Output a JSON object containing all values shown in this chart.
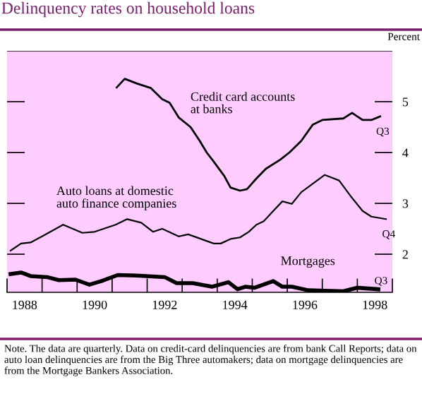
{
  "chart_data": {
    "type": "line",
    "title": "Delinquency rates on household loans",
    "ylabel": "Percent",
    "series": [
      {
        "name": "Credit card accounts\nat banks",
        "color": "#000000",
        "x": [
          1991.13,
          1991.36,
          1991.7,
          1992.1,
          1992.43,
          1992.64,
          1992.9,
          1993.24,
          1993.5,
          1993.7,
          1993.9,
          1994.2,
          1994.38,
          1994.65,
          1994.85,
          1995.12,
          1995.39,
          1995.8,
          1996.06,
          1996.4,
          1996.73,
          1997.0,
          1997.6,
          1997.85,
          1998.15,
          1998.4,
          1998.65
        ],
        "values": [
          5.28,
          5.45,
          5.36,
          5.27,
          5.05,
          4.98,
          4.69,
          4.5,
          4.23,
          4.0,
          3.82,
          3.54,
          3.31,
          3.25,
          3.28,
          3.49,
          3.68,
          3.86,
          4.0,
          4.23,
          4.55,
          4.64,
          4.67,
          4.78,
          4.64,
          4.64,
          4.71
        ]
      },
      {
        "name": "Auto loans at domestic\nauto finance companies",
        "color": "#000000",
        "x": [
          1988.1,
          1988.4,
          1988.67,
          1989.0,
          1989.6,
          1990.15,
          1990.5,
          1991.1,
          1991.43,
          1991.83,
          1992.17,
          1992.43,
          1992.9,
          1993.17,
          1993.9,
          1994.1,
          1994.38,
          1994.65,
          1994.9,
          1995.12,
          1995.33,
          1995.6,
          1995.86,
          1996.13,
          1996.4,
          1997.07,
          1997.48,
          1997.8,
          1998.15,
          1998.4,
          1998.82
        ],
        "values": [
          2.07,
          2.21,
          2.23,
          2.35,
          2.58,
          2.42,
          2.44,
          2.58,
          2.69,
          2.62,
          2.44,
          2.5,
          2.35,
          2.39,
          2.21,
          2.21,
          2.3,
          2.33,
          2.44,
          2.58,
          2.65,
          2.85,
          3.04,
          2.99,
          3.22,
          3.56,
          3.45,
          3.15,
          2.85,
          2.74,
          2.69
        ]
      },
      {
        "name": "Mortgages",
        "color": "#000000",
        "x": [
          1988.1,
          1988.4,
          1988.67,
          1989.14,
          1989.48,
          1989.95,
          1990.35,
          1990.69,
          1991.16,
          1991.7,
          1992.5,
          1992.84,
          1993.3,
          1993.85,
          1994.32,
          1994.58,
          1994.8,
          1995.06,
          1995.6,
          1995.86,
          1996.13,
          1996.6,
          1997.07,
          1997.6,
          1998.0,
          1998.6
        ],
        "values": [
          1.61,
          1.64,
          1.57,
          1.55,
          1.49,
          1.5,
          1.4,
          1.47,
          1.59,
          1.58,
          1.55,
          1.43,
          1.43,
          1.36,
          1.45,
          1.31,
          1.36,
          1.34,
          1.47,
          1.36,
          1.36,
          1.29,
          1.28,
          1.27,
          1.34,
          1.31
        ]
      }
    ],
    "xlim": [
      1988,
      1999
    ],
    "xticks": [
      {
        "value": 1988,
        "label": null
      },
      {
        "value": 1988.5,
        "label": "1988"
      },
      {
        "value": 1989,
        "label": null
      },
      {
        "value": 1990,
        "label": null
      },
      {
        "value": 1990.5,
        "label": "1990"
      },
      {
        "value": 1991,
        "label": null
      },
      {
        "value": 1992,
        "label": null
      },
      {
        "value": 1992.5,
        "label": "1992"
      },
      {
        "value": 1993,
        "label": null
      },
      {
        "value": 1994,
        "label": null
      },
      {
        "value": 1994.5,
        "label": "1994"
      },
      {
        "value": 1995,
        "label": null
      },
      {
        "value": 1996,
        "label": null
      },
      {
        "value": 1996.5,
        "label": "1996"
      },
      {
        "value": 1997,
        "label": null
      },
      {
        "value": 1998,
        "label": null
      },
      {
        "value": 1998.5,
        "label": "1998"
      },
      {
        "value": 1999,
        "label": null
      }
    ],
    "ylim": [
      1.25,
      6.0
    ],
    "yticks": [
      2,
      3,
      4,
      5
    ],
    "grid": false,
    "legend": false,
    "marker": "none",
    "line_style": "solid",
    "annotations": [
      {
        "text": "Q3",
        "x": 1998.65,
        "y": 4.71
      },
      {
        "text": "Q4",
        "x": 1998.82,
        "y": 2.69
      },
      {
        "text": "Q3",
        "x": 1998.6,
        "y": 1.31
      },
      "Note. The data are quarterly. Data on credit-card delinquencies are from bank Call Reports; data on auto loan delinquencies are from the Big Three automakers; data on mortgage delinquencies are from the Mortgage Bankers Association."
    ]
  }
}
